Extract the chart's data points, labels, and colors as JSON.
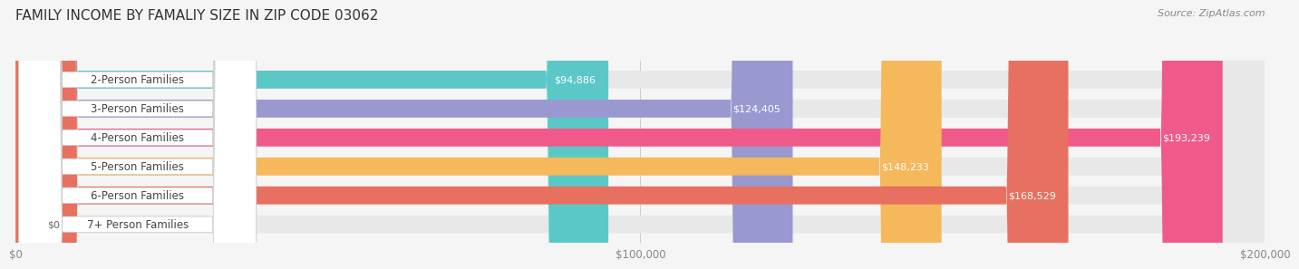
{
  "title": "FAMILY INCOME BY FAMALIY SIZE IN ZIP CODE 03062",
  "source": "Source: ZipAtlas.com",
  "categories": [
    "2-Person Families",
    "3-Person Families",
    "4-Person Families",
    "5-Person Families",
    "6-Person Families",
    "7+ Person Families"
  ],
  "values": [
    94886,
    124405,
    193239,
    148233,
    168529,
    0
  ],
  "bar_colors": [
    "#5bc8c8",
    "#9999d0",
    "#f05a8a",
    "#f5b85a",
    "#e87060",
    "#a8c8e8"
  ],
  "bar_bg_color": "#e8e8e8",
  "value_labels": [
    "$94,886",
    "$124,405",
    "$193,239",
    "$148,233",
    "$168,529",
    "$0"
  ],
  "xlim": [
    0,
    200000
  ],
  "xticks": [
    0,
    100000,
    200000
  ],
  "xtick_labels": [
    "$0",
    "$100,000",
    "$200,000"
  ],
  "background_color": "#f5f5f5",
  "title_fontsize": 11,
  "label_fontsize": 8.5,
  "value_fontsize": 8,
  "bar_height": 0.62,
  "figsize": [
    14.06,
    3.05
  ]
}
